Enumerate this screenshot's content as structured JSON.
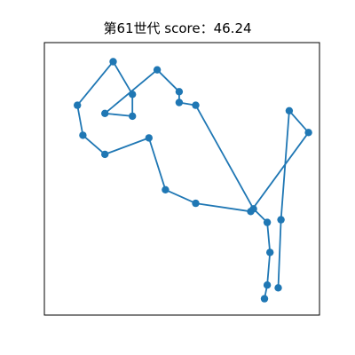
{
  "title": "第61世代 score：46.24",
  "colors": {
    "line": "#1f77b4",
    "marker": "#1f77b4",
    "frame": "#000000",
    "background": "#ffffff"
  },
  "chart_data": {
    "type": "line",
    "title": "第61世代 score：46.24",
    "xlabel": "",
    "ylabel": "",
    "grid": false,
    "axes_ticks_visible": false,
    "xlim": [
      0,
      1
    ],
    "ylim": [
      0,
      1
    ],
    "series": [
      {
        "points": [
          [
            0.85,
            0.1
          ],
          [
            0.86,
            0.35
          ],
          [
            0.89,
            0.75
          ],
          [
            0.96,
            0.67
          ],
          [
            0.75,
            0.38
          ],
          [
            0.55,
            0.41
          ],
          [
            0.44,
            0.46
          ],
          [
            0.38,
            0.65
          ],
          [
            0.22,
            0.59
          ],
          [
            0.14,
            0.66
          ],
          [
            0.12,
            0.77
          ],
          [
            0.25,
            0.93
          ],
          [
            0.32,
            0.81
          ],
          [
            0.32,
            0.73
          ],
          [
            0.22,
            0.74
          ],
          [
            0.41,
            0.9
          ],
          [
            0.49,
            0.82
          ],
          [
            0.49,
            0.78
          ],
          [
            0.55,
            0.77
          ],
          [
            0.76,
            0.39
          ],
          [
            0.81,
            0.34
          ],
          [
            0.82,
            0.23
          ],
          [
            0.81,
            0.11
          ],
          [
            0.8,
            0.06
          ]
        ]
      }
    ]
  }
}
